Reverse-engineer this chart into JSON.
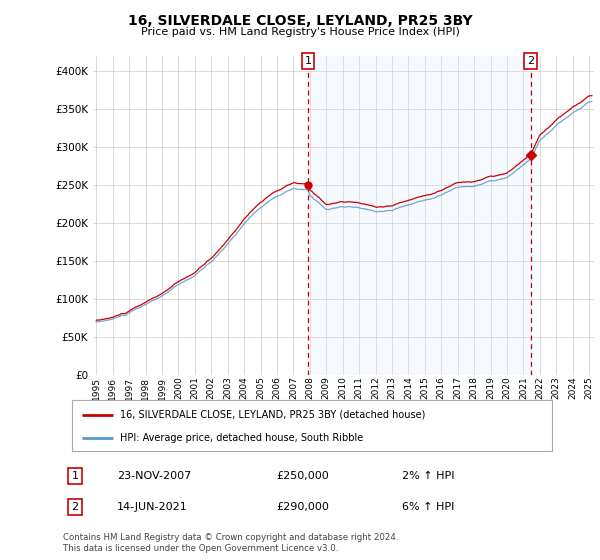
{
  "title": "16, SILVERDALE CLOSE, LEYLAND, PR25 3BY",
  "subtitle": "Price paid vs. HM Land Registry's House Price Index (HPI)",
  "legend_label_red": "16, SILVERDALE CLOSE, LEYLAND, PR25 3BY (detached house)",
  "legend_label_blue": "HPI: Average price, detached house, South Ribble",
  "transaction1": {
    "label": "1",
    "date": "23-NOV-2007",
    "price": "£250,000",
    "hpi": "2% ↑ HPI"
  },
  "transaction2": {
    "label": "2",
    "date": "14-JUN-2021",
    "price": "£290,000",
    "hpi": "6% ↑ HPI"
  },
  "footer": "Contains HM Land Registry data © Crown copyright and database right 2024.\nThis data is licensed under the Open Government Licence v3.0.",
  "ylim": [
    0,
    420000
  ],
  "yticks": [
    0,
    50000,
    100000,
    150000,
    200000,
    250000,
    300000,
    350000,
    400000
  ],
  "background_color": "#ffffff",
  "grid_color": "#cccccc",
  "red_color": "#cc0000",
  "blue_color": "#5599cc",
  "shade_color": "#ddeeff",
  "vline_color": "#cc0000",
  "marker1_x": 2007.9,
  "marker1_y": 250000,
  "marker2_x": 2021.45,
  "marker2_y": 290000,
  "xlim_left": 1994.8,
  "xlim_right": 2025.3
}
